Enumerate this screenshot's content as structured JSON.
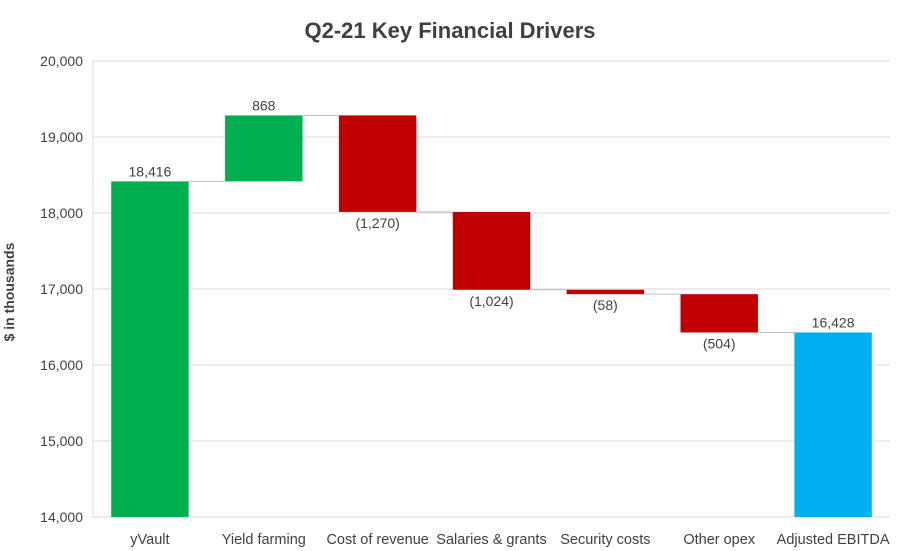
{
  "chart_data": {
    "type": "bar",
    "subtype": "waterfall",
    "title": "Q2-21 Key Financial Drivers",
    "ylabel": "$ in thousands",
    "xlabel": "",
    "ylim": [
      14000,
      20000
    ],
    "yticks": [
      14000,
      15000,
      16000,
      17000,
      18000,
      19000,
      20000
    ],
    "ytick_labels": [
      "14,000",
      "15,000",
      "16,000",
      "17,000",
      "18,000",
      "19,000",
      "20,000"
    ],
    "grid": true,
    "legend": "none",
    "categories": [
      "yVault",
      "Yield farming",
      "Cost of revenue",
      "Salaries & grants",
      "Security costs",
      "Other opex",
      "Adjusted EBITDA"
    ],
    "values": [
      18416,
      868,
      -1270,
      -1024,
      -58,
      -504,
      16428
    ],
    "kinds": [
      "total",
      "delta",
      "delta",
      "delta",
      "delta",
      "delta",
      "total"
    ],
    "data_labels": [
      "18,416",
      "868",
      "(1,270)",
      "(1,024)",
      "(58)",
      "(504)",
      "16,428"
    ],
    "colors": {
      "start": "#00b050",
      "increase": "#00b050",
      "decrease": "#c00000",
      "end": "#00b0f0"
    }
  }
}
